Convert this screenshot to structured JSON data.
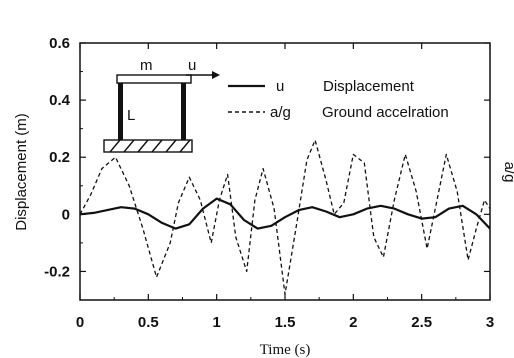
{
  "chart_data": {
    "type": "line",
    "xlabel": "Time (s)",
    "ylabel": "Displacement (m)",
    "ylabel_right": "a/g",
    "xlim": [
      0,
      3
    ],
    "ylim": [
      -0.3,
      0.6
    ],
    "x_ticks": [
      "0",
      "0.5",
      "1",
      "1.5",
      "2",
      "2.5",
      "3"
    ],
    "y_ticks": [
      "-0.2",
      "0",
      "0.2",
      "0.4",
      "0.6"
    ],
    "grid": false,
    "legend_position": "top-right",
    "series": [
      {
        "name": "Displacement",
        "legend_symbol": "u",
        "style": "solid",
        "x": [
          0,
          0.1,
          0.2,
          0.3,
          0.4,
          0.5,
          0.6,
          0.7,
          0.8,
          0.9,
          1.0,
          1.1,
          1.2,
          1.3,
          1.4,
          1.5,
          1.6,
          1.7,
          1.8,
          1.9,
          2.0,
          2.1,
          2.2,
          2.3,
          2.4,
          2.5,
          2.6,
          2.7,
          2.8,
          2.9,
          3.0
        ],
        "y": [
          0,
          0.005,
          0.015,
          0.025,
          0.02,
          0,
          -0.03,
          -0.05,
          -0.035,
          0.02,
          0.055,
          0.035,
          -0.02,
          -0.05,
          -0.04,
          -0.01,
          0.015,
          0.025,
          0.01,
          -0.01,
          0,
          0.02,
          0.03,
          0.02,
          0,
          -0.015,
          -0.01,
          0.02,
          0.03,
          0,
          -0.05
        ]
      },
      {
        "name": "Ground accelration",
        "legend_symbol": "a/g",
        "style": "dashed",
        "x": [
          0,
          0.08,
          0.16,
          0.26,
          0.36,
          0.46,
          0.56,
          0.66,
          0.72,
          0.8,
          0.88,
          0.96,
          1.02,
          1.08,
          1.14,
          1.22,
          1.28,
          1.34,
          1.42,
          1.5,
          1.58,
          1.66,
          1.72,
          1.8,
          1.86,
          1.93,
          2.0,
          2.08,
          2.15,
          2.22,
          2.3,
          2.38,
          2.46,
          2.54,
          2.6,
          2.68,
          2.76,
          2.84,
          2.9,
          2.96,
          3.0
        ],
        "y": [
          0,
          0.07,
          0.16,
          0.2,
          0.1,
          -0.05,
          -0.22,
          -0.1,
          0.04,
          0.13,
          0.05,
          -0.1,
          0.05,
          0.14,
          -0.08,
          -0.2,
          0.05,
          0.16,
          0.02,
          -0.28,
          -0.05,
          0.19,
          0.26,
          0.12,
          0.0,
          0.04,
          0.21,
          0.18,
          -0.08,
          -0.15,
          0.05,
          0.21,
          0.08,
          -0.12,
          0.02,
          0.21,
          0.08,
          -0.16,
          -0.05,
          0.05,
          0.02
        ]
      }
    ]
  },
  "inset": {
    "mass_label": "m",
    "disp_label": "u",
    "length_label": "L"
  }
}
